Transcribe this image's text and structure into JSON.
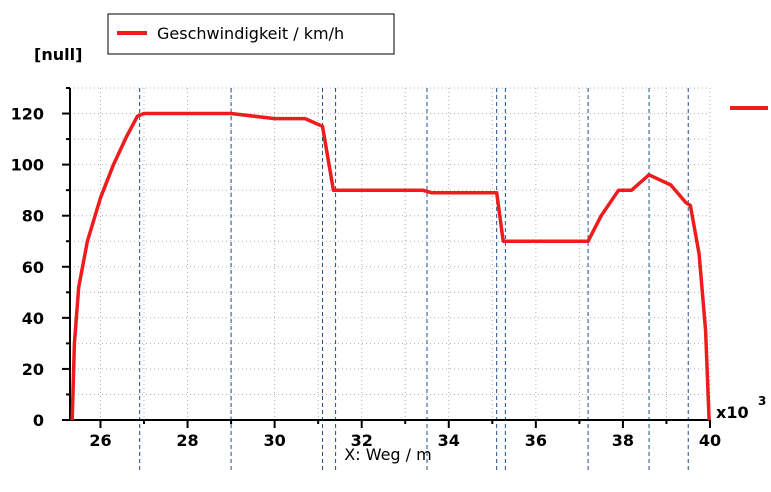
{
  "chart_data": {
    "type": "line",
    "ylabel": "[null]",
    "xlabel": "X: Weg / m",
    "x_multiplier_label": "x10",
    "x_multiplier_exp": "3",
    "xlim": [
      25.3,
      40
    ],
    "ylim": [
      0,
      130
    ],
    "x_ticks": [
      26,
      28,
      30,
      32,
      34,
      36,
      38,
      40
    ],
    "y_ticks": [
      0,
      20,
      40,
      60,
      80,
      100,
      120
    ],
    "grid": true,
    "legend_position": "top-left",
    "series": [
      {
        "name": "Geschwindigkeit / km/h",
        "color": "#ee1c1c",
        "x": [
          25.35,
          25.4,
          25.5,
          25.7,
          26.0,
          26.3,
          26.6,
          26.85,
          27.0,
          29.0,
          30.0,
          30.7,
          31.1,
          31.35,
          33.4,
          33.6,
          35.1,
          35.25,
          37.2,
          37.5,
          37.9,
          38.2,
          38.6,
          39.1,
          39.45,
          39.55,
          39.75,
          39.9,
          39.98
        ],
        "y": [
          0,
          30,
          52,
          70,
          87,
          100,
          111,
          119,
          120,
          120,
          118,
          118,
          115,
          90,
          90,
          89,
          89,
          70,
          70,
          80,
          90,
          90,
          96,
          92,
          85,
          84,
          65,
          35,
          0
        ]
      }
    ],
    "vertical_markers": [
      26.9,
      29.0,
      31.1,
      31.4,
      33.5,
      35.1,
      35.3,
      37.2,
      38.6,
      39.5
    ]
  }
}
